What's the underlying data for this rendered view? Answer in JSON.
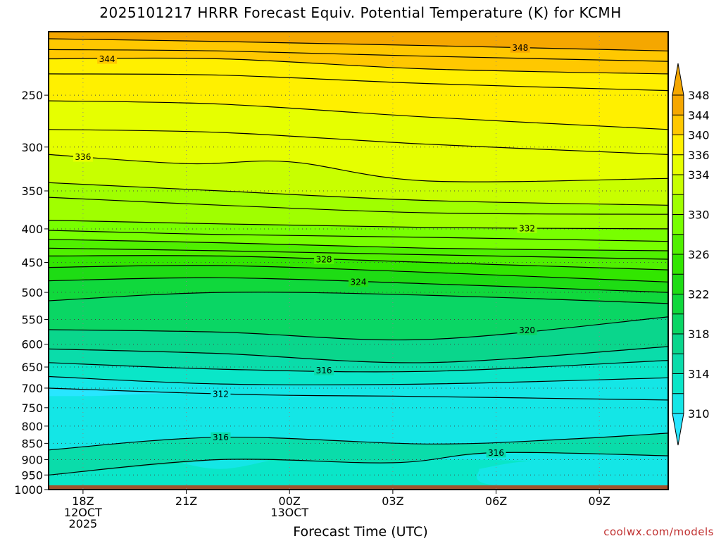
{
  "page": {
    "title": "2025101217 HRRR Forecast Equiv. Potential Temperature (K) for KCMH",
    "xlabel": "Forecast Time (UTC)",
    "credit": "coolwx.com/models"
  },
  "chart_data": {
    "type": "heatmap",
    "title": "2025101217 HRRR Forecast Equiv. Potential Temperature (K) for KCMH",
    "xlabel": "Forecast Time (UTC)",
    "ylabel": "",
    "x_ticks": [
      {
        "hour": 18,
        "lines": [
          "18Z",
          "12OCT",
          "2025"
        ]
      },
      {
        "hour": 21,
        "lines": [
          "21Z"
        ]
      },
      {
        "hour": 24,
        "lines": [
          "00Z",
          "13OCT"
        ]
      },
      {
        "hour": 27,
        "lines": [
          "03Z"
        ]
      },
      {
        "hour": 30,
        "lines": [
          "06Z"
        ]
      },
      {
        "hour": 33,
        "lines": [
          "09Z"
        ]
      }
    ],
    "xlim": [
      17,
      35
    ],
    "y_ticks": [
      250,
      300,
      350,
      400,
      450,
      500,
      550,
      600,
      650,
      700,
      750,
      800,
      850,
      900,
      950,
      1000
    ],
    "ylim": [
      200,
      1000
    ],
    "y_scale": "log",
    "grid": true,
    "colorbar": {
      "labels": [
        348,
        344,
        340,
        336,
        334,
        332,
        330,
        328,
        326,
        324,
        322,
        320,
        318,
        316,
        314,
        312,
        310
      ],
      "printed": [
        348,
        344,
        340,
        336,
        334,
        330,
        326,
        322,
        318,
        314,
        310
      ],
      "colors": [
        "#F5A700",
        "#FFC800",
        "#FFF000",
        "#E6FF00",
        "#C8FF00",
        "#A0FF00",
        "#78FF00",
        "#50F000",
        "#32E600",
        "#1EDC14",
        "#10D83C",
        "#0AD664",
        "#0AD68C",
        "#0ADCAA",
        "#0AE6C8",
        "#14E6E6",
        "#28E6FF"
      ],
      "bins": [
        {
          "min": 348,
          "color": "#F5A700"
        },
        {
          "min": 344,
          "color": "#FFC800"
        },
        {
          "min": 340,
          "color": "#FFF000"
        },
        {
          "min": 336,
          "color": "#E6FF00"
        },
        {
          "min": 334,
          "color": "#C8FF00"
        },
        {
          "min": 332,
          "color": "#A0FF00"
        },
        {
          "min": 330,
          "color": "#78FF00"
        },
        {
          "min": 328,
          "color": "#50F000"
        },
        {
          "min": 326,
          "color": "#32E600"
        },
        {
          "min": 324,
          "color": "#1EDC14"
        },
        {
          "min": 322,
          "color": "#10D83C"
        },
        {
          "min": 320,
          "color": "#0AD664"
        },
        {
          "min": 318,
          "color": "#0AD68C"
        },
        {
          "min": 316,
          "color": "#0ADCAA"
        },
        {
          "min": 314,
          "color": "#0AE6C8"
        },
        {
          "min": 312,
          "color": "#14E6E6"
        },
        {
          "min": 0,
          "color": "#28E6FF"
        }
      ]
    },
    "contours": [
      {
        "value": 348,
        "label": true,
        "label_hour": 30.7,
        "p": [
          [
            17,
            205
          ],
          [
            22,
            207
          ],
          [
            28,
            210
          ],
          [
            35,
            214
          ]
        ]
      },
      {
        "value": 346,
        "label": false,
        "p": [
          [
            17,
            213
          ],
          [
            22,
            214
          ],
          [
            28,
            218
          ],
          [
            35,
            222
          ]
        ]
      },
      {
        "value": 344,
        "label": true,
        "label_hour": 18.7,
        "p": [
          [
            17,
            220
          ],
          [
            22,
            220
          ],
          [
            28,
            228
          ],
          [
            35,
            232
          ]
        ]
      },
      {
        "value": 342,
        "label": false,
        "p": [
          [
            17,
            232
          ],
          [
            22,
            233
          ],
          [
            28,
            240
          ],
          [
            35,
            246
          ]
        ]
      },
      {
        "value": 340,
        "label": false,
        "p": [
          [
            17,
            255
          ],
          [
            22,
            258
          ],
          [
            28,
            270
          ],
          [
            35,
            282
          ]
        ]
      },
      {
        "value": 338,
        "label": false,
        "p": [
          [
            17,
            282
          ],
          [
            22,
            285
          ],
          [
            28,
            297
          ],
          [
            35,
            308
          ]
        ]
      },
      {
        "value": 336,
        "label": true,
        "label_hour": 18.0,
        "p": [
          [
            17,
            308
          ],
          [
            21,
            318
          ],
          [
            24,
            316
          ],
          [
            28,
            338
          ],
          [
            35,
            335
          ]
        ]
      },
      {
        "value": 334,
        "label": false,
        "p": [
          [
            17,
            340
          ],
          [
            22,
            350
          ],
          [
            28,
            362
          ],
          [
            35,
            368
          ]
        ]
      },
      {
        "value": 333,
        "label": false,
        "p": [
          [
            17,
            358
          ],
          [
            22,
            368
          ],
          [
            28,
            378
          ],
          [
            35,
            380
          ]
        ]
      },
      {
        "value": 332,
        "label": true,
        "label_hour": 30.9,
        "p": [
          [
            17,
            388
          ],
          [
            22,
            393
          ],
          [
            28,
            398
          ],
          [
            35,
            400
          ]
        ]
      },
      {
        "value": 331,
        "label": false,
        "p": [
          [
            17,
            402
          ],
          [
            22,
            408
          ],
          [
            28,
            412
          ],
          [
            35,
            418
          ]
        ]
      },
      {
        "value": 330,
        "label": false,
        "p": [
          [
            17,
            415
          ],
          [
            22,
            420
          ],
          [
            28,
            428
          ],
          [
            35,
            432
          ]
        ]
      },
      {
        "value": 329,
        "label": false,
        "p": [
          [
            17,
            428
          ],
          [
            22,
            432
          ],
          [
            28,
            438
          ],
          [
            35,
            445
          ]
        ]
      },
      {
        "value": 328,
        "label": true,
        "label_hour": 25.0,
        "p": [
          [
            17,
            440
          ],
          [
            22,
            440
          ],
          [
            28,
            450
          ],
          [
            35,
            462
          ]
        ]
      },
      {
        "value": 326,
        "label": false,
        "p": [
          [
            17,
            458
          ],
          [
            22,
            455
          ],
          [
            28,
            466
          ],
          [
            35,
            482
          ]
        ]
      },
      {
        "value": 324,
        "label": true,
        "label_hour": 26.0,
        "p": [
          [
            17,
            480
          ],
          [
            22,
            475
          ],
          [
            28,
            485
          ],
          [
            35,
            500
          ]
        ]
      },
      {
        "value": 322,
        "label": false,
        "p": [
          [
            17,
            515
          ],
          [
            22,
            500
          ],
          [
            28,
            505
          ],
          [
            35,
            520
          ]
        ]
      },
      {
        "value": 320,
        "label": true,
        "label_hour": 30.9,
        "p": [
          [
            17,
            570
          ],
          [
            22,
            575
          ],
          [
            28,
            590
          ],
          [
            35,
            545
          ]
        ]
      },
      {
        "value": 318,
        "label": false,
        "p": [
          [
            17,
            610
          ],
          [
            22,
            620
          ],
          [
            28,
            640
          ],
          [
            35,
            605
          ]
        ]
      },
      {
        "value": 316,
        "label": true,
        "label_hour": 25.0,
        "p": [
          [
            17,
            640
          ],
          [
            22,
            655
          ],
          [
            28,
            660
          ],
          [
            35,
            635
          ]
        ]
      },
      {
        "value": 314,
        "label": false,
        "p": [
          [
            17,
            672
          ],
          [
            22,
            690
          ],
          [
            28,
            690
          ],
          [
            35,
            675
          ]
        ]
      },
      {
        "value": 312,
        "label": true,
        "label_hour": 22.0,
        "p": [
          [
            17,
            700
          ],
          [
            21,
            712
          ],
          [
            24,
            718
          ],
          [
            27,
            720
          ],
          [
            35,
            730
          ]
        ]
      },
      {
        "value": 316,
        "label": true,
        "label_hour": 22.0,
        "p": [
          [
            17,
            870
          ],
          [
            22,
            832
          ],
          [
            28,
            852
          ],
          [
            32,
            838
          ],
          [
            35,
            820
          ]
        ]
      },
      {
        "value": 316,
        "label": true,
        "label_hour": 30.0,
        "p": [
          [
            17,
            950
          ],
          [
            22,
            900
          ],
          [
            27,
            910
          ],
          [
            30,
            878
          ],
          [
            35,
            888
          ]
        ]
      }
    ],
    "regions": [
      {
        "value": 310,
        "p": [
          [
            17,
            790
          ],
          [
            18.5,
            740
          ],
          [
            20,
            740
          ],
          [
            20.5,
            770
          ],
          [
            18,
            800
          ],
          [
            17,
            810
          ]
        ]
      },
      {
        "value": 312,
        "p": [
          [
            17,
            725
          ],
          [
            21,
            712
          ],
          [
            24,
            718
          ],
          [
            23.8,
            745
          ],
          [
            24.5,
            760
          ],
          [
            29,
            760
          ],
          [
            31,
            770
          ],
          [
            32.5,
            748
          ],
          [
            34,
            700
          ],
          [
            35,
            715
          ],
          [
            35,
            900
          ],
          [
            33,
            920
          ],
          [
            31,
            880
          ],
          [
            29,
            875
          ],
          [
            28.5,
            850
          ],
          [
            26,
            835
          ],
          [
            24,
            830
          ],
          [
            22,
            828
          ],
          [
            20,
            838
          ],
          [
            18.5,
            860
          ],
          [
            17,
            880
          ]
        ]
      },
      {
        "value": 314,
        "p": [
          [
            17,
            920
          ],
          [
            20,
            900
          ],
          [
            22,
            930
          ],
          [
            24,
            895
          ],
          [
            26,
            910
          ],
          [
            28,
            900
          ],
          [
            31,
            905
          ],
          [
            33,
            930
          ],
          [
            35,
            960
          ],
          [
            35,
            985
          ],
          [
            17,
            985
          ]
        ]
      },
      {
        "value": 312,
        "p": [
          [
            29.5,
            930
          ],
          [
            31,
            905
          ],
          [
            33,
            920
          ],
          [
            35,
            960
          ],
          [
            35,
            985
          ],
          [
            30,
            985
          ]
        ]
      }
    ],
    "surface": {
      "pressure": 985,
      "color": "#A0522D"
    }
  }
}
